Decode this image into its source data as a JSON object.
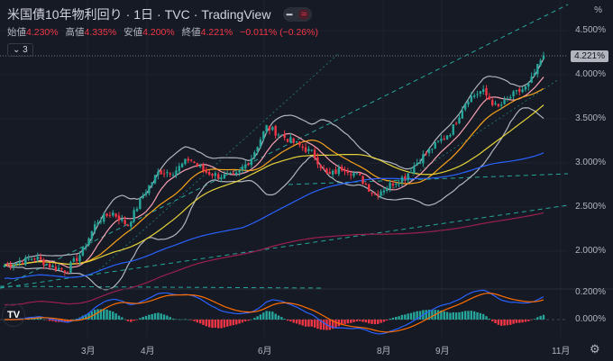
{
  "header": {
    "title": "米国債10年物利回り",
    "interval": "1日",
    "source": "TVC",
    "provider": "TradingView",
    "sep": "·",
    "toggle": [
      "━",
      "≈"
    ]
  },
  "ohlc": {
    "open_label": "始値",
    "open": "4.230%",
    "high_label": "高値",
    "high": "4.335%",
    "low_label": "安値",
    "low": "4.200%",
    "close_label": "終値",
    "close": "4.221%",
    "change": "−0.011% (−0.26%)"
  },
  "indicators_collapsed": "⌄ 3",
  "price_axis": {
    "unit": "%",
    "ticks": [
      "4.500%",
      "4.000%",
      "3.500%",
      "3.000%",
      "2.500%",
      "2.000%"
    ],
    "last_price": "4.221%"
  },
  "macd_axis": {
    "ticks": [
      "0.200%",
      "0.000%"
    ]
  },
  "time_axis": {
    "ticks": [
      "3月",
      "4月",
      "6月",
      "8月",
      "9月",
      "11月"
    ]
  },
  "logo": "TV",
  "settings_icon": "⚙",
  "colors": {
    "up": "#26a69a",
    "down": "#f23645",
    "bg": "#161a25",
    "ma_fast": "#f7a21b",
    "ma_mid": "#e5d33a",
    "ma_slow": "#2962ff",
    "ma_long": "#9c1f4f",
    "bands": "#b2b5be",
    "trend": "#26a69a"
  },
  "chart_data": {
    "type": "candlestick",
    "ylabel": "%",
    "ylim": [
      1.6,
      4.85
    ],
    "path": [
      1.84,
      1.88,
      1.93,
      1.83,
      1.78,
      1.98,
      2.34,
      2.44,
      2.29,
      2.64,
      2.9,
      2.9,
      3.05,
      2.9,
      2.85,
      2.85,
      3.05,
      3.41,
      3.31,
      3.21,
      3.11,
      2.85,
      2.95,
      2.85,
      2.64,
      2.75,
      2.85,
      3.05,
      3.21,
      3.36,
      3.72,
      3.82,
      3.62,
      3.77,
      3.87,
      4.22
    ]
  }
}
